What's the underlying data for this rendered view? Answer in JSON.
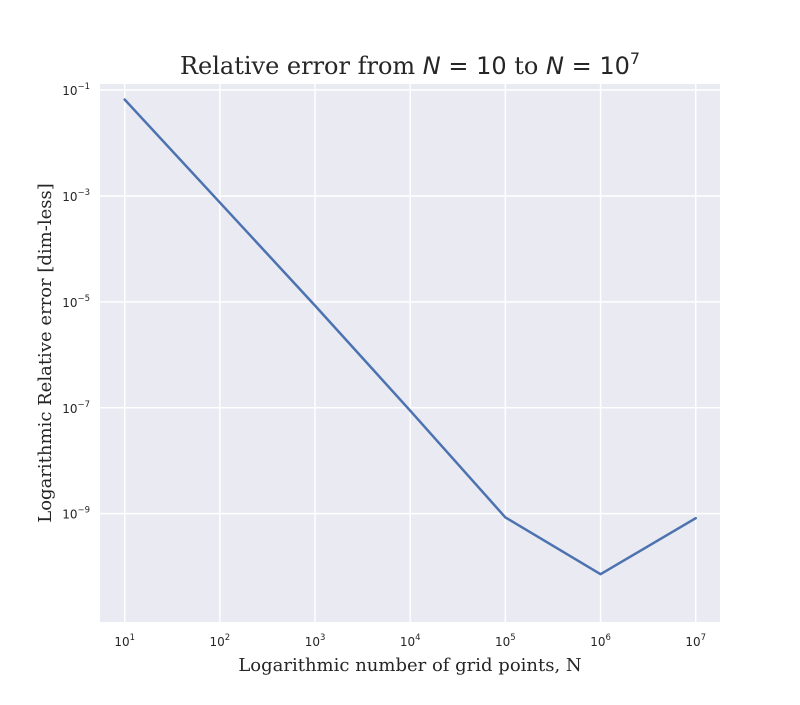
{
  "chart_data": {
    "type": "line",
    "title": {
      "prefix": "Relative error from ",
      "var1": "N",
      "eq1": " = 10",
      "middle": " to ",
      "var2": "N",
      "eq2": " = 10",
      "eq2_exp": "7"
    },
    "xlabel": "Logarithmic number of grid points, N",
    "ylabel": "Logarithmic Relative error [dim-less]",
    "x_scale": "log",
    "y_scale": "log",
    "xlim": [
      5.5,
      18000000
    ],
    "ylim": [
      9e-12,
      0.13
    ],
    "grid": true,
    "legend": "none",
    "x_ticks": [
      {
        "value": 10,
        "base": "10",
        "exp": "1"
      },
      {
        "value": 100,
        "base": "10",
        "exp": "2"
      },
      {
        "value": 1000,
        "base": "10",
        "exp": "3"
      },
      {
        "value": 10000,
        "base": "10",
        "exp": "4"
      },
      {
        "value": 100000,
        "base": "10",
        "exp": "5"
      },
      {
        "value": 1000000,
        "base": "10",
        "exp": "6"
      },
      {
        "value": 10000000,
        "base": "10",
        "exp": "7"
      }
    ],
    "y_ticks": [
      {
        "value": 0.1,
        "base": "10",
        "exp": "−1"
      },
      {
        "value": 0.001,
        "base": "10",
        "exp": "−3"
      },
      {
        "value": 1e-05,
        "base": "10",
        "exp": "−5"
      },
      {
        "value": 1e-07,
        "base": "10",
        "exp": "−7"
      },
      {
        "value": 1e-09,
        "base": "10",
        "exp": "−9"
      }
    ],
    "series": [
      {
        "color": "#4c72b0",
        "x": [
          10,
          100,
          1000,
          10000,
          100000,
          1000000,
          10000000
        ],
        "y": [
          0.066,
          0.00075,
          8.5e-06,
          8.8e-08,
          8.5e-10,
          7.2e-11,
          8.2e-10
        ]
      }
    ],
    "colors": {
      "plot_background": "#eaeaf2",
      "grid": "#ffffff"
    }
  }
}
